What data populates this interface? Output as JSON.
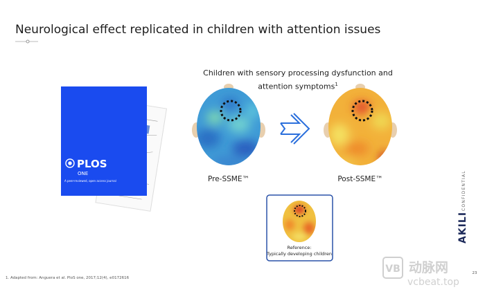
{
  "header": {
    "title": "Neurological effect replicated in children with attention issues"
  },
  "journal": {
    "name": "PLOS",
    "subname": "ONE",
    "tagline": "A peer-reviewed, open access journal"
  },
  "figure": {
    "caption": "Children with sensory processing dysfunction and attention symptoms",
    "caption_note": "1",
    "before": {
      "label": "Pre-SSME™"
    },
    "after": {
      "label": "Post-SSME™"
    },
    "reference": {
      "label": "Reference:",
      "description": "Typically developing children"
    }
  },
  "footnote": "1. Adapted from: Anguera et al. PloS one, 2017;12(4), e0172616",
  "brand": {
    "logo": "AKILI",
    "stamp": "CONFIDENTIAL"
  },
  "page_number": "23",
  "watermark": {
    "mark": "动脉网",
    "url": "vcbeat.top"
  }
}
